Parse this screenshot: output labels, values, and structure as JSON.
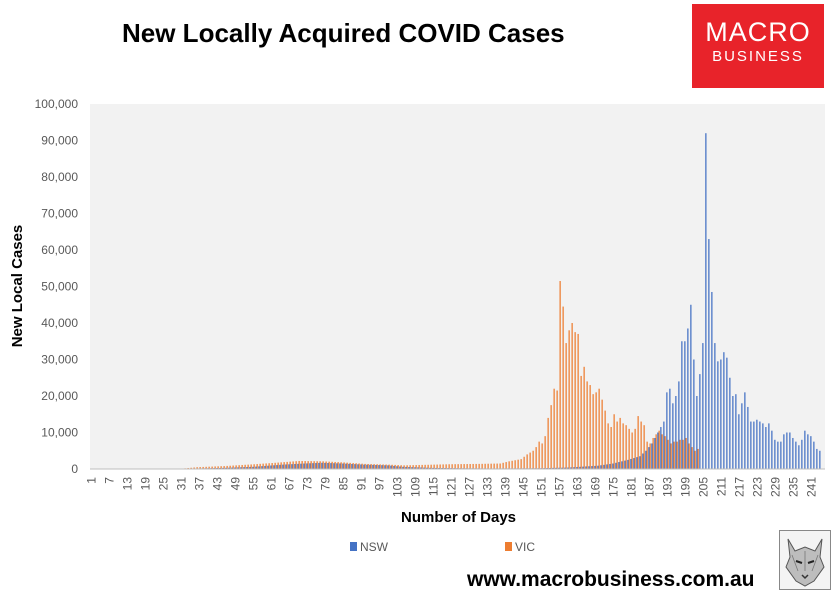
{
  "title": "New Locally Acquired COVID Cases",
  "logo": {
    "line1": "MACRO",
    "line2": "BUSINESS",
    "bg": "#e8232a",
    "icon": "wolf-logo-icon"
  },
  "website": "www.macrobusiness.com.au",
  "chart_data": {
    "type": "bar",
    "xlabel": "Number of Days",
    "ylabel": "New Local Cases",
    "ylim": [
      0,
      100000
    ],
    "xlim": [
      1,
      245
    ],
    "y_ticks": [
      0,
      10000,
      20000,
      30000,
      40000,
      50000,
      60000,
      70000,
      80000,
      90000,
      100000
    ],
    "y_tick_labels": [
      "0",
      "10,000",
      "20,000",
      "30,000",
      "40,000",
      "50,000",
      "60,000",
      "70,000",
      "80,000",
      "90,000",
      "100,000"
    ],
    "x_tick_labels": [
      "1",
      "7",
      "13",
      "19",
      "25",
      "31",
      "37",
      "43",
      "49",
      "55",
      "61",
      "67",
      "73",
      "79",
      "85",
      "91",
      "97",
      "103",
      "109",
      "115",
      "121",
      "127",
      "133",
      "139",
      "145",
      "151",
      "157",
      "163",
      "169",
      "175",
      "181",
      "187",
      "193",
      "199",
      "205",
      "211",
      "217",
      "223",
      "229",
      "235",
      "241"
    ],
    "grid": false,
    "legend_position": "bottom",
    "background": "#f2f2f2",
    "series": [
      {
        "name": "NSW",
        "color": "#4472c4",
        "points": [
          [
            1,
            10
          ],
          [
            30,
            20
          ],
          [
            45,
            300
          ],
          [
            55,
            600
          ],
          [
            60,
            900
          ],
          [
            65,
            1200
          ],
          [
            72,
            1500
          ],
          [
            78,
            1700
          ],
          [
            85,
            1500
          ],
          [
            92,
            1200
          ],
          [
            100,
            1000
          ],
          [
            105,
            600
          ],
          [
            115,
            300
          ],
          [
            125,
            200
          ],
          [
            135,
            150
          ],
          [
            150,
            200
          ],
          [
            160,
            400
          ],
          [
            170,
            900
          ],
          [
            175,
            1500
          ],
          [
            180,
            2500
          ],
          [
            184,
            3500
          ],
          [
            186,
            5000
          ],
          [
            188,
            7000
          ],
          [
            190,
            10000
          ],
          [
            192,
            13000
          ],
          [
            193,
            21000
          ],
          [
            194,
            22000
          ],
          [
            195,
            18000
          ],
          [
            196,
            20000
          ],
          [
            197,
            24000
          ],
          [
            198,
            35000
          ],
          [
            199,
            35000
          ],
          [
            200,
            38500
          ],
          [
            201,
            45000
          ],
          [
            202,
            30000
          ],
          [
            203,
            20000
          ],
          [
            204,
            26000
          ],
          [
            205,
            34500
          ],
          [
            206,
            92000
          ],
          [
            207,
            63000
          ],
          [
            208,
            48500
          ],
          [
            209,
            34500
          ],
          [
            210,
            29500
          ],
          [
            211,
            30000
          ],
          [
            212,
            32000
          ],
          [
            213,
            30500
          ],
          [
            214,
            25000
          ],
          [
            215,
            20000
          ],
          [
            216,
            20500
          ],
          [
            217,
            15000
          ],
          [
            218,
            18000
          ],
          [
            219,
            21000
          ],
          [
            220,
            17000
          ],
          [
            221,
            13000
          ],
          [
            222,
            13000
          ],
          [
            223,
            13500
          ],
          [
            224,
            13000
          ],
          [
            225,
            12500
          ],
          [
            226,
            11500
          ],
          [
            227,
            12500
          ],
          [
            228,
            10500
          ],
          [
            229,
            8000
          ],
          [
            230,
            7500
          ],
          [
            231,
            7500
          ],
          [
            232,
            9500
          ],
          [
            233,
            10000
          ],
          [
            234,
            10000
          ],
          [
            235,
            8500
          ],
          [
            236,
            7500
          ],
          [
            237,
            6500
          ],
          [
            238,
            8000
          ],
          [
            239,
            10500
          ],
          [
            240,
            9500
          ],
          [
            241,
            9000
          ],
          [
            242,
            7500
          ],
          [
            243,
            5500
          ],
          [
            244,
            5000
          ]
        ]
      },
      {
        "name": "VIC",
        "color": "#ed7d31",
        "points": [
          [
            1,
            10
          ],
          [
            30,
            30
          ],
          [
            36,
            500
          ],
          [
            45,
            800
          ],
          [
            55,
            1300
          ],
          [
            62,
            1700
          ],
          [
            70,
            2200
          ],
          [
            78,
            2100
          ],
          [
            85,
            1800
          ],
          [
            92,
            1400
          ],
          [
            100,
            1200
          ],
          [
            105,
            1000
          ],
          [
            110,
            1100
          ],
          [
            120,
            1300
          ],
          [
            130,
            1400
          ],
          [
            137,
            1500
          ],
          [
            140,
            2100
          ],
          [
            142,
            2400
          ],
          [
            144,
            2700
          ],
          [
            146,
            4000
          ],
          [
            148,
            5000
          ],
          [
            149,
            6000
          ],
          [
            150,
            7500
          ],
          [
            151,
            7000
          ],
          [
            152,
            9000
          ],
          [
            153,
            14000
          ],
          [
            154,
            17500
          ],
          [
            155,
            22000
          ],
          [
            156,
            21500
          ],
          [
            157,
            51500
          ],
          [
            158,
            44500
          ],
          [
            159,
            34500
          ],
          [
            160,
            38000
          ],
          [
            161,
            40000
          ],
          [
            162,
            37500
          ],
          [
            163,
            37000
          ],
          [
            164,
            25500
          ],
          [
            165,
            28000
          ],
          [
            166,
            24000
          ],
          [
            167,
            23000
          ],
          [
            168,
            20500
          ],
          [
            169,
            21000
          ],
          [
            170,
            22000
          ],
          [
            171,
            19000
          ],
          [
            172,
            16000
          ],
          [
            173,
            12500
          ],
          [
            174,
            11500
          ],
          [
            175,
            15000
          ],
          [
            176,
            13000
          ],
          [
            177,
            14000
          ],
          [
            178,
            12500
          ],
          [
            179,
            12000
          ],
          [
            180,
            11000
          ],
          [
            181,
            10000
          ],
          [
            182,
            11000
          ],
          [
            183,
            14500
          ],
          [
            184,
            13000
          ],
          [
            185,
            12000
          ],
          [
            186,
            7500
          ],
          [
            187,
            7000
          ],
          [
            188,
            8500
          ],
          [
            189,
            9500
          ],
          [
            190,
            10500
          ],
          [
            191,
            9500
          ],
          [
            192,
            9000
          ],
          [
            193,
            8000
          ],
          [
            194,
            7000
          ],
          [
            195,
            7500
          ],
          [
            196,
            7500
          ],
          [
            197,
            8000
          ],
          [
            198,
            8000
          ],
          [
            199,
            8500
          ],
          [
            200,
            7000
          ],
          [
            201,
            6000
          ],
          [
            202,
            5000
          ],
          [
            203,
            5500
          ]
        ]
      }
    ]
  }
}
